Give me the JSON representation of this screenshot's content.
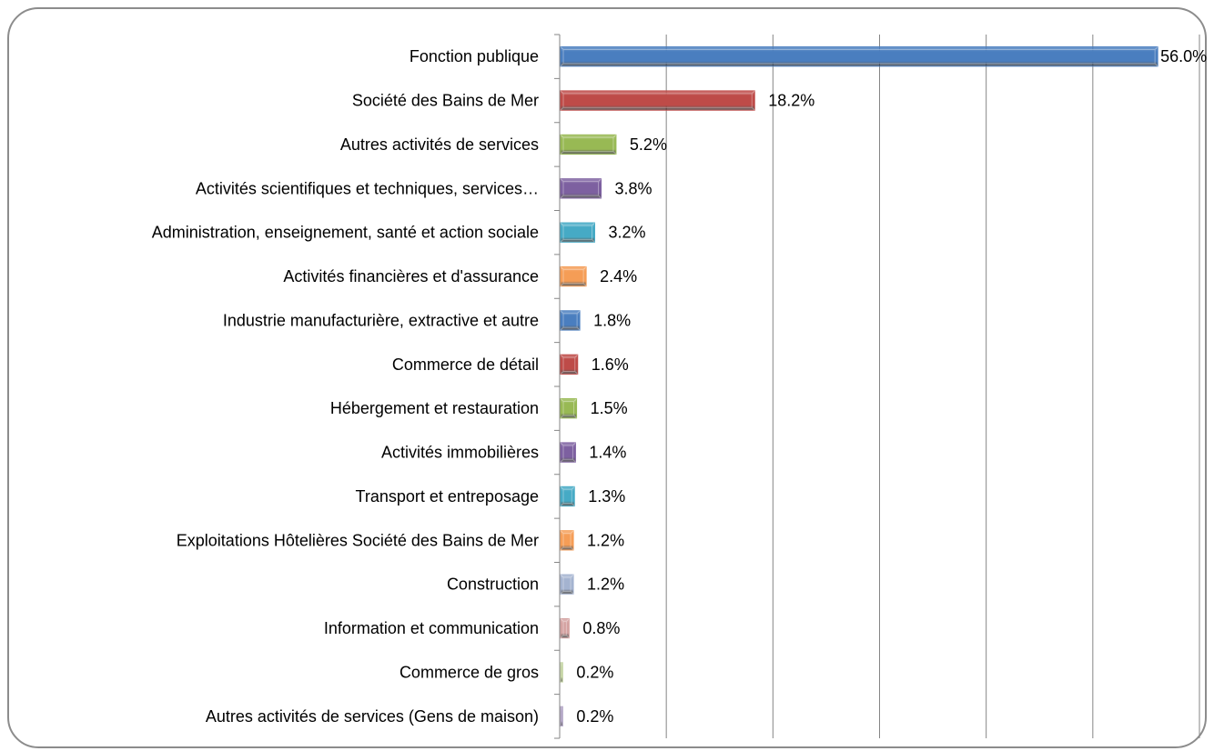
{
  "chart_data": {
    "type": "bar",
    "orientation": "horizontal",
    "categories": [
      "Fonction publique",
      "Société des Bains de Mer",
      "Autres activités de services",
      "Activités scientifiques et techniques, services…",
      "Administration, enseignement, santé et action sociale",
      "Activités financières et d'assurance",
      "Industrie manufacturière, extractive et autre",
      "Commerce de détail",
      "Hébergement et restauration",
      "Activités immobilières",
      "Transport et entreposage",
      "Exploitations Hôtelières Société des Bains de Mer",
      "Construction",
      "Information et communication",
      "Commerce de gros",
      "Autres activités de services (Gens de maison)"
    ],
    "values": [
      56.0,
      18.2,
      5.2,
      3.8,
      3.2,
      2.4,
      1.8,
      1.6,
      1.5,
      1.4,
      1.3,
      1.2,
      1.2,
      0.8,
      0.2,
      0.2
    ],
    "value_labels": [
      "56.0%",
      "18.2%",
      "5.2%",
      "3.8%",
      "3.2%",
      "2.4%",
      "1.8%",
      "1.6%",
      "1.5%",
      "1.4%",
      "1.3%",
      "1.2%",
      "1.2%",
      "0.8%",
      "0.2%",
      "0.2%"
    ],
    "colors": [
      "#4a7ebf",
      "#be4b48",
      "#98b954",
      "#7d60a0",
      "#46aac5",
      "#f59d56",
      "#4a7ebf",
      "#be4b48",
      "#98b954",
      "#7d60a0",
      "#46aac5",
      "#f59d56",
      "#a4b3d0",
      "#d4a2a1",
      "#c6d5a6",
      "#b4a8c7"
    ],
    "xlim": [
      0,
      60
    ],
    "x_gridlines": [
      10,
      20,
      30,
      40,
      50,
      60
    ],
    "grid": true,
    "legend": "none",
    "title": "",
    "xlabel": "",
    "ylabel": ""
  }
}
